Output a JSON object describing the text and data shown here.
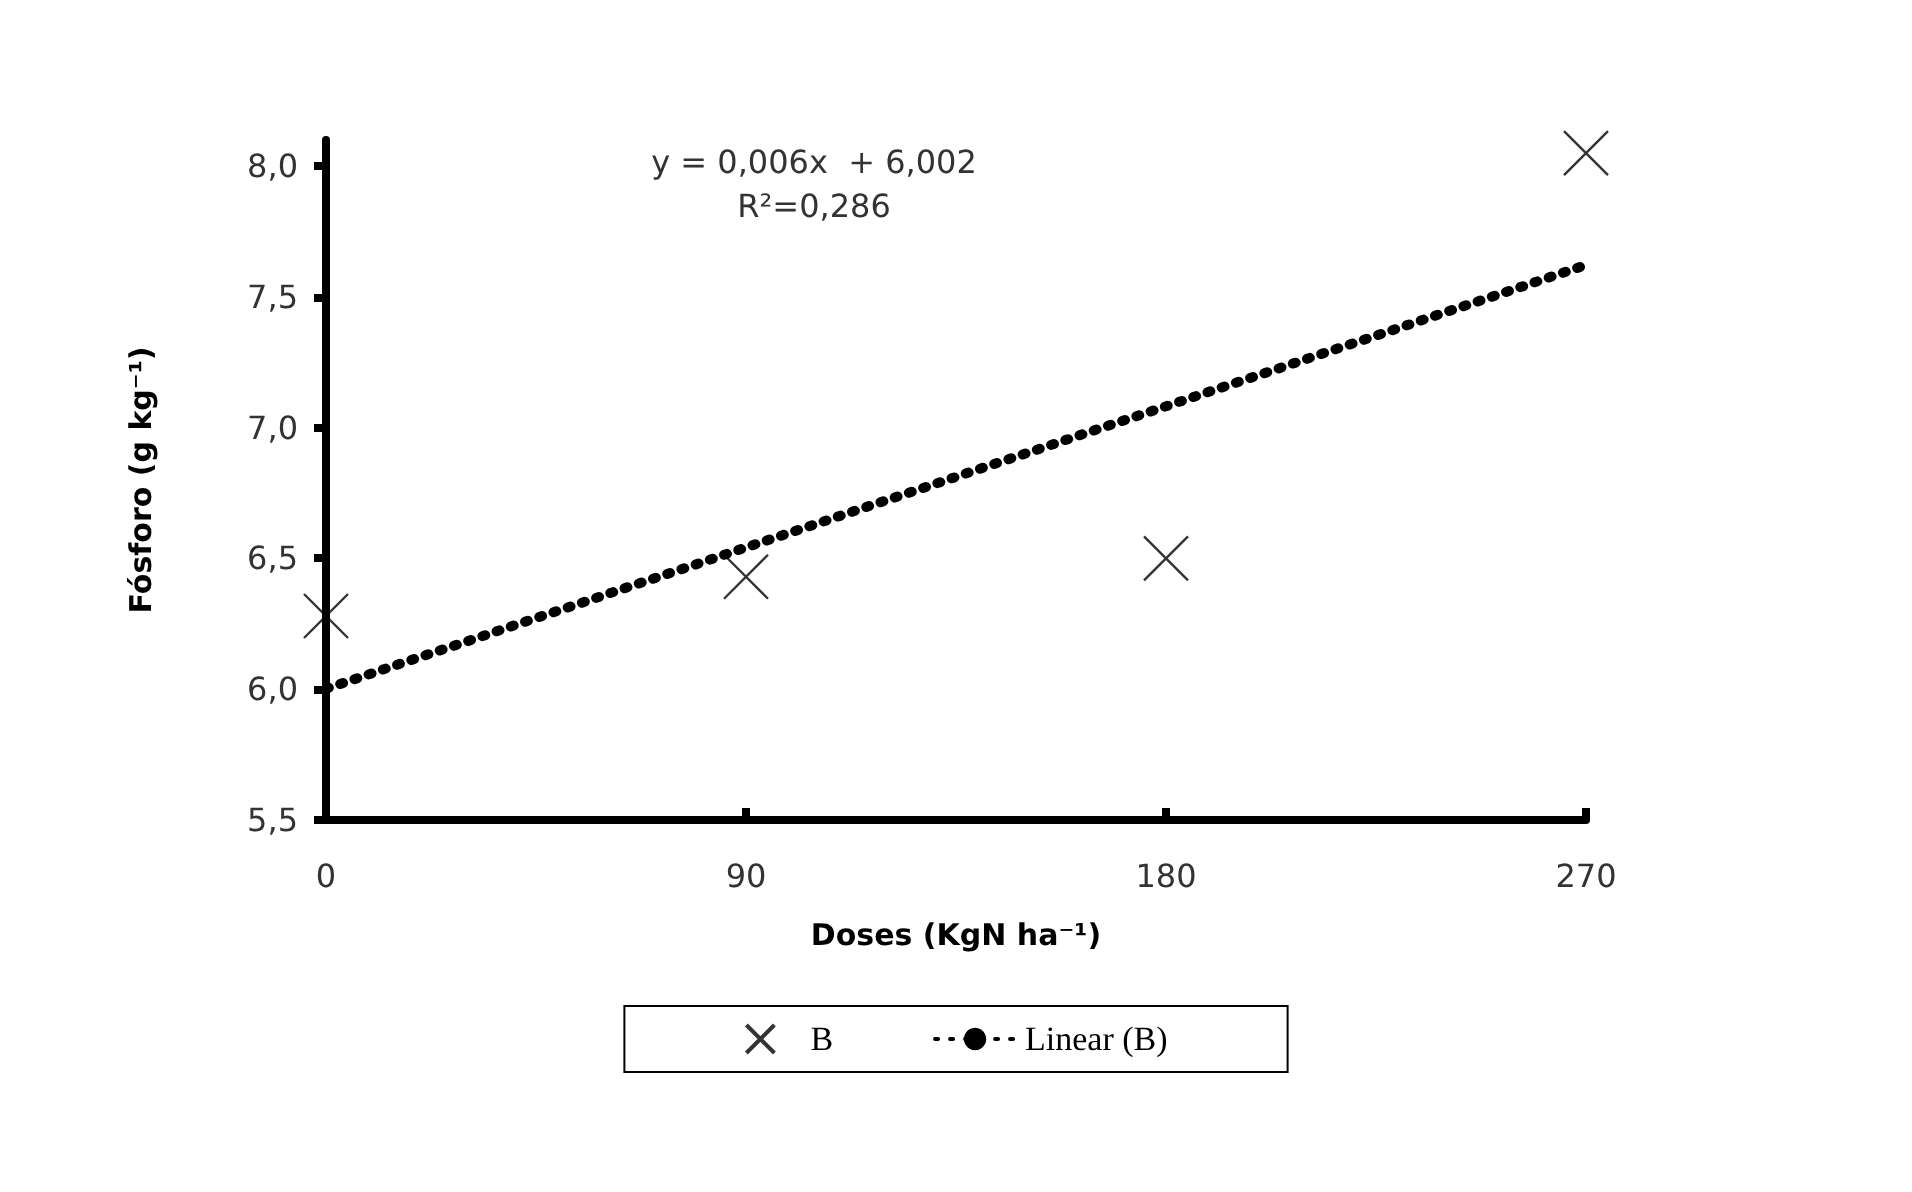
{
  "chart_data": {
    "type": "scatter",
    "xlabel": "Doses (KgN ha⁻¹)",
    "ylabel": "Fósforo (g kg⁻¹)",
    "x": [
      0,
      90,
      180,
      270
    ],
    "series": [
      {
        "name": "B",
        "color": "#000000",
        "marker": "cross",
        "values": [
          6.28,
          6.43,
          6.5,
          8.05
        ]
      },
      {
        "name": "Linear (B)",
        "type": "line",
        "color": "#000000",
        "line_style": "dotted",
        "marker": "none",
        "x": [
          0,
          270
        ],
        "values": [
          6.002,
          7.622
        ]
      }
    ],
    "xlim": [
      0,
      270
    ],
    "xticks": [
      0,
      90,
      180,
      270
    ],
    "ylim": [
      5.5,
      8.1
    ],
    "yticks": [
      {
        "value": 5.5,
        "label": "5,5"
      },
      {
        "value": 6.0,
        "label": "6,0"
      },
      {
        "value": 6.5,
        "label": "6,5"
      },
      {
        "value": 7.0,
        "label": "7,0"
      },
      {
        "value": 7.5,
        "label": "7,5"
      },
      {
        "value": 8.0,
        "label": "8,0"
      }
    ],
    "annotations": [
      "y = 0,006x  + 6,002",
      "R²=0,286"
    ],
    "grid": false,
    "legend": "bottom"
  }
}
